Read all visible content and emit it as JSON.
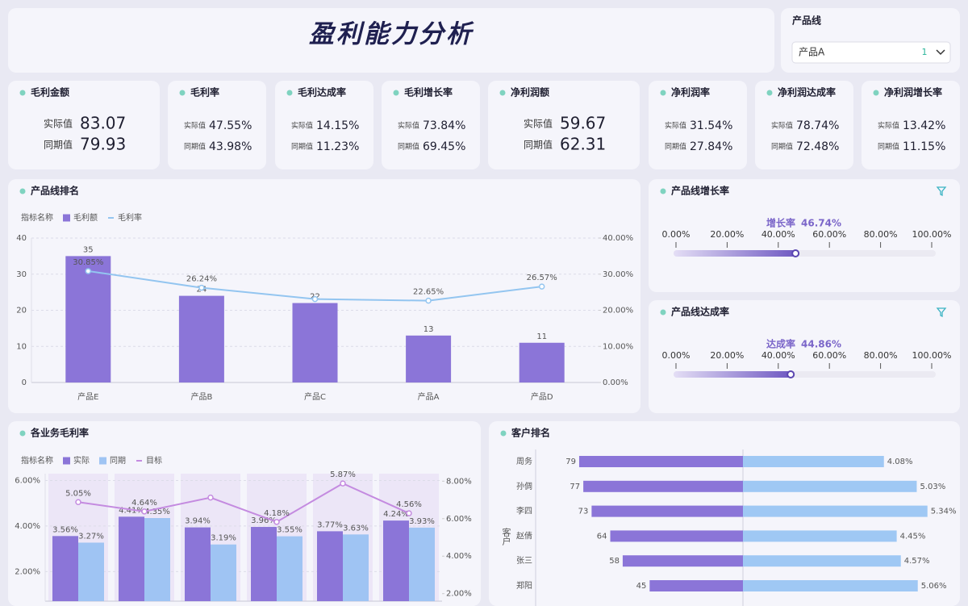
{
  "header": {
    "title": "盈利能力分析"
  },
  "filter": {
    "label": "产品线",
    "value": "产品A",
    "count": 1
  },
  "kpi_labels": {
    "actual": "实际值",
    "prior": "同期值"
  },
  "kpis": [
    {
      "title": "毛利金额",
      "actual": "83.07",
      "prior": "79.93"
    },
    {
      "title": "毛利率",
      "actual": "47.55%",
      "prior": "43.98%"
    },
    {
      "title": "毛利达成率",
      "actual": "14.15%",
      "prior": "11.23%"
    },
    {
      "title": "毛利增长率",
      "actual": "73.84%",
      "prior": "69.45%"
    },
    {
      "title": "净利润额",
      "actual": "59.67",
      "prior": "62.31"
    },
    {
      "title": "净利润率",
      "actual": "31.54%",
      "prior": "27.84%"
    },
    {
      "title": "净利润达成率",
      "actual": "78.74%",
      "prior": "72.48%"
    },
    {
      "title": "净利润增长率",
      "actual": "13.42%",
      "prior": "11.15%"
    }
  ],
  "chart_data": [
    {
      "type": "combo",
      "title": "产品线排名",
      "legend_title": "指标名称",
      "categories": [
        "产品E",
        "产品B",
        "产品C",
        "产品A",
        "产品D"
      ],
      "series": [
        {
          "name": "毛利额",
          "type": "bar",
          "color": "#8b75d8",
          "values": [
            35,
            24,
            22,
            13,
            11
          ]
        },
        {
          "name": "毛利率",
          "type": "line",
          "axis": "y2",
          "color": "#93c5f0",
          "values": [
            30.85,
            26.24,
            23.1,
            22.65,
            26.57
          ],
          "value_labels": [
            "30.85%",
            "26.24%",
            null,
            "22.65%",
            "26.57%"
          ]
        }
      ],
      "ylim": [
        0,
        40
      ],
      "yticks": [
        0,
        10,
        20,
        30,
        40
      ],
      "y2lim": [
        0,
        40
      ],
      "y2ticks": [
        {
          "value": 0,
          "label": "0.00%"
        },
        {
          "value": 10,
          "label": "10.00%"
        },
        {
          "value": 20,
          "label": "20.00%"
        },
        {
          "value": 30,
          "label": "30.00%"
        },
        {
          "value": 40,
          "label": "40.00%"
        }
      ],
      "grid": true
    },
    {
      "type": "progress",
      "title": "产品线增长率",
      "label": "增长率",
      "value": 46.74,
      "value_label": "46.74%",
      "color": "#7b66c9",
      "xlim": [
        0,
        100
      ],
      "xticks": [
        {
          "value": 0,
          "label": "0.00%"
        },
        {
          "value": 20,
          "label": "20.00%"
        },
        {
          "value": 40,
          "label": "40.00%"
        },
        {
          "value": 60,
          "label": "60.00%"
        },
        {
          "value": 80,
          "label": "80.00%"
        },
        {
          "value": 100,
          "label": "100.00%"
        }
      ]
    },
    {
      "type": "progress",
      "title": "产品线达成率",
      "label": "达成率",
      "value": 44.86,
      "value_label": "44.86%",
      "color": "#7b66c9",
      "xlim": [
        0,
        100
      ],
      "xticks": [
        {
          "value": 0,
          "label": "0.00%"
        },
        {
          "value": 20,
          "label": "20.00%"
        },
        {
          "value": 40,
          "label": "40.00%"
        },
        {
          "value": 60,
          "label": "60.00%"
        },
        {
          "value": 80,
          "label": "80.00%"
        },
        {
          "value": 100,
          "label": "100.00%"
        }
      ]
    },
    {
      "type": "combo",
      "title": "各业务毛利率",
      "legend_title": "指标名称",
      "categories": [
        null,
        null,
        null,
        null,
        null,
        null
      ],
      "series": [
        {
          "name": "实际",
          "type": "bar",
          "color": "#8b75d8",
          "values": [
            3.56,
            4.41,
            3.94,
            3.96,
            3.77,
            4.24
          ],
          "value_labels": [
            "3.56%",
            "4.41%",
            "3.94%",
            "3.96%",
            "3.77%",
            "4.24%"
          ]
        },
        {
          "name": "同期",
          "type": "bar",
          "color": "#9fc4f3",
          "values": [
            3.27,
            4.35,
            3.19,
            3.55,
            3.63,
            3.93
          ],
          "value_labels": [
            "3.27%",
            "4.35%",
            "3.19%",
            "3.55%",
            "3.63%",
            "3.93%"
          ]
        },
        {
          "name": "目标",
          "type": "line",
          "color": "#c48be0",
          "values": [
            5.05,
            4.64,
            5.25,
            4.18,
            5.87,
            4.56
          ],
          "value_labels": [
            "5.05%",
            "4.64%",
            null,
            "4.18%",
            "5.87%",
            "4.56%"
          ]
        }
      ],
      "ylim": [
        0.7,
        6.3
      ],
      "yticks": [
        {
          "value": 2,
          "label": "2.00%"
        },
        {
          "value": 4,
          "label": "4.00%"
        },
        {
          "value": 6,
          "label": "6.00%"
        }
      ],
      "y2lim": [
        1.6,
        8.4
      ],
      "y2ticks": [
        {
          "value": 2,
          "label": "2.00%"
        },
        {
          "value": 4,
          "label": "4.00%"
        },
        {
          "value": 6,
          "label": "6.00%"
        },
        {
          "value": 8,
          "label": "8.00%"
        }
      ],
      "grid": true
    },
    {
      "type": "diverging_bar",
      "title": "客户排名",
      "y_label": "客户",
      "categories": [
        "周务",
        "孙倜",
        "李四",
        "赵倩",
        "张三",
        "郑阳"
      ],
      "series": [
        {
          "color": "#8b75d8",
          "values": [
            79,
            77,
            73,
            64,
            58,
            45
          ],
          "xlim": [
            0,
            100
          ]
        },
        {
          "color": "#9fc8f4",
          "values": [
            4.08,
            5.03,
            5.34,
            4.45,
            4.57,
            5.06
          ],
          "xlim": [
            0,
            6
          ],
          "value_labels": [
            "4.08%",
            "5.03%",
            "5.34%",
            "4.45%",
            "4.57%",
            "5.06%"
          ]
        }
      ]
    }
  ]
}
